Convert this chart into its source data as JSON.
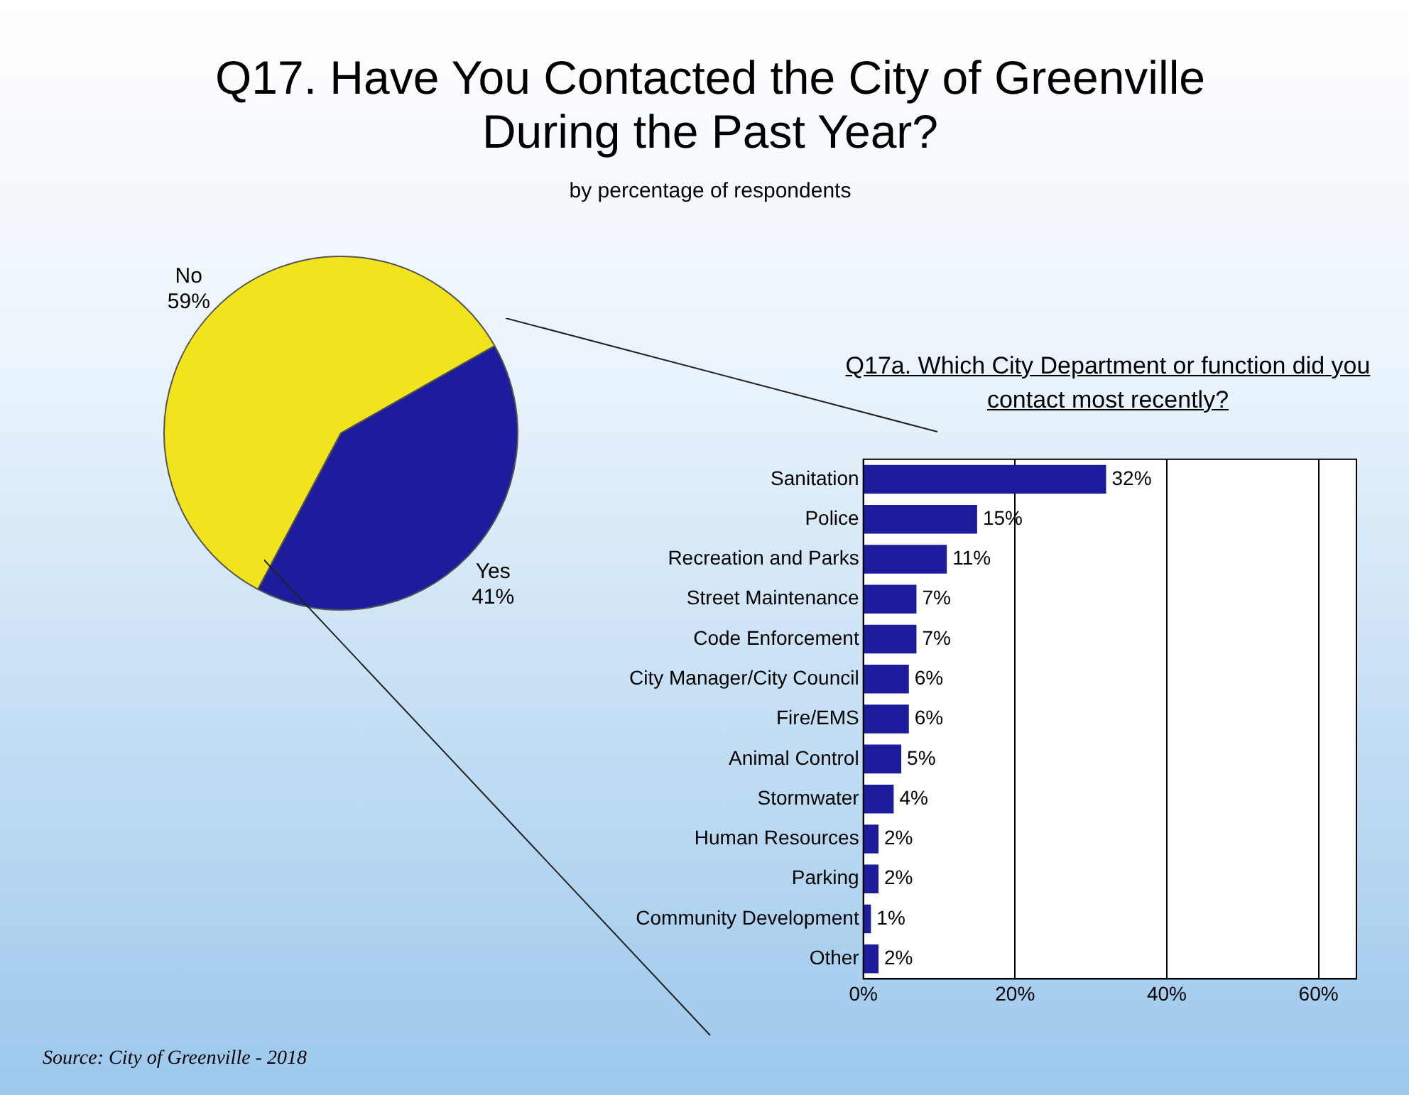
{
  "chart_data": [
    {
      "type": "pie",
      "title": "Q17. Have You Contacted the City of Greenville During the Past Year?",
      "subtitle": "by percentage of respondents",
      "categories": [
        "No",
        "Yes"
      ],
      "values": [
        59,
        41
      ],
      "colors": [
        "#f2e41c",
        "#1c1c9c"
      ],
      "value_labels": [
        "59%",
        "41%"
      ],
      "legend": false,
      "annotations": [
        "Source: City of Greenville - 2018"
      ]
    },
    {
      "type": "bar",
      "orientation": "horizontal",
      "title": "Q17a. Which City Department or function did you contact most recently?",
      "categories": [
        "Sanitation",
        "Police",
        "Recreation and Parks",
        "Street Maintenance",
        "Code Enforcement",
        "City Manager/City Council",
        "Fire/EMS",
        "Animal Control",
        "Stormwater",
        "Human Resources",
        "Parking",
        "Community Development",
        "Other"
      ],
      "values": [
        32,
        15,
        11,
        7,
        7,
        6,
        6,
        5,
        4,
        2,
        2,
        1,
        2
      ],
      "color": "#1c1c9c",
      "value_labels": [
        "32%",
        "15%",
        "11%",
        "7%",
        "7%",
        "6%",
        "6%",
        "5%",
        "4%",
        "2%",
        "2%",
        "1%",
        "2%"
      ],
      "xlim": [
        0,
        65
      ],
      "xticks": [
        {
          "value": 0,
          "label": "0%"
        },
        {
          "value": 20,
          "label": "20%"
        },
        {
          "value": 40,
          "label": "40%"
        },
        {
          "value": 60,
          "label": "60%"
        }
      ],
      "grid": "x",
      "legend": false
    }
  ]
}
